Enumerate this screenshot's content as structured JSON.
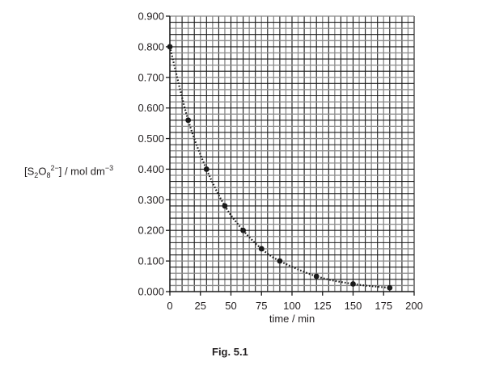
{
  "chart_data": {
    "type": "scatter",
    "title": "",
    "caption": "Fig. 5.1",
    "xlabel": "time / min",
    "ylabel": "[S2O8 2−] / mol dm−3",
    "ylabel_parts": {
      "open": "[S",
      "sub1": "2",
      "o": "O",
      "sub2": "8",
      "sup": "2−",
      "close": "]",
      "unit": " / mol dm",
      "unit_sup": "−3"
    },
    "xlim": [
      0,
      200
    ],
    "ylim": [
      0.0,
      0.9
    ],
    "x_ticks": [
      0,
      25,
      50,
      75,
      100,
      125,
      150,
      175,
      200
    ],
    "y_ticks": [
      0.0,
      0.1,
      0.2,
      0.3,
      0.4,
      0.5,
      0.6,
      0.7,
      0.8,
      0.9
    ],
    "y_tick_labels": [
      "0.000",
      "0.100",
      "0.200",
      "0.300",
      "0.400",
      "0.500",
      "0.600",
      "0.700",
      "0.800",
      "0.900"
    ],
    "grid": {
      "on": true,
      "x_minor_step": 5,
      "y_minor_step": 0.02
    },
    "legend": null,
    "series": [
      {
        "name": "[S2O8 2-]",
        "marker": "filled-circle",
        "line": "dotted best-fit curve",
        "x": [
          0,
          15,
          30,
          45,
          60,
          75,
          90,
          120,
          150,
          180
        ],
        "y": [
          0.8,
          0.56,
          0.4,
          0.28,
          0.2,
          0.14,
          0.1,
          0.05,
          0.025,
          0.0125
        ]
      }
    ]
  }
}
